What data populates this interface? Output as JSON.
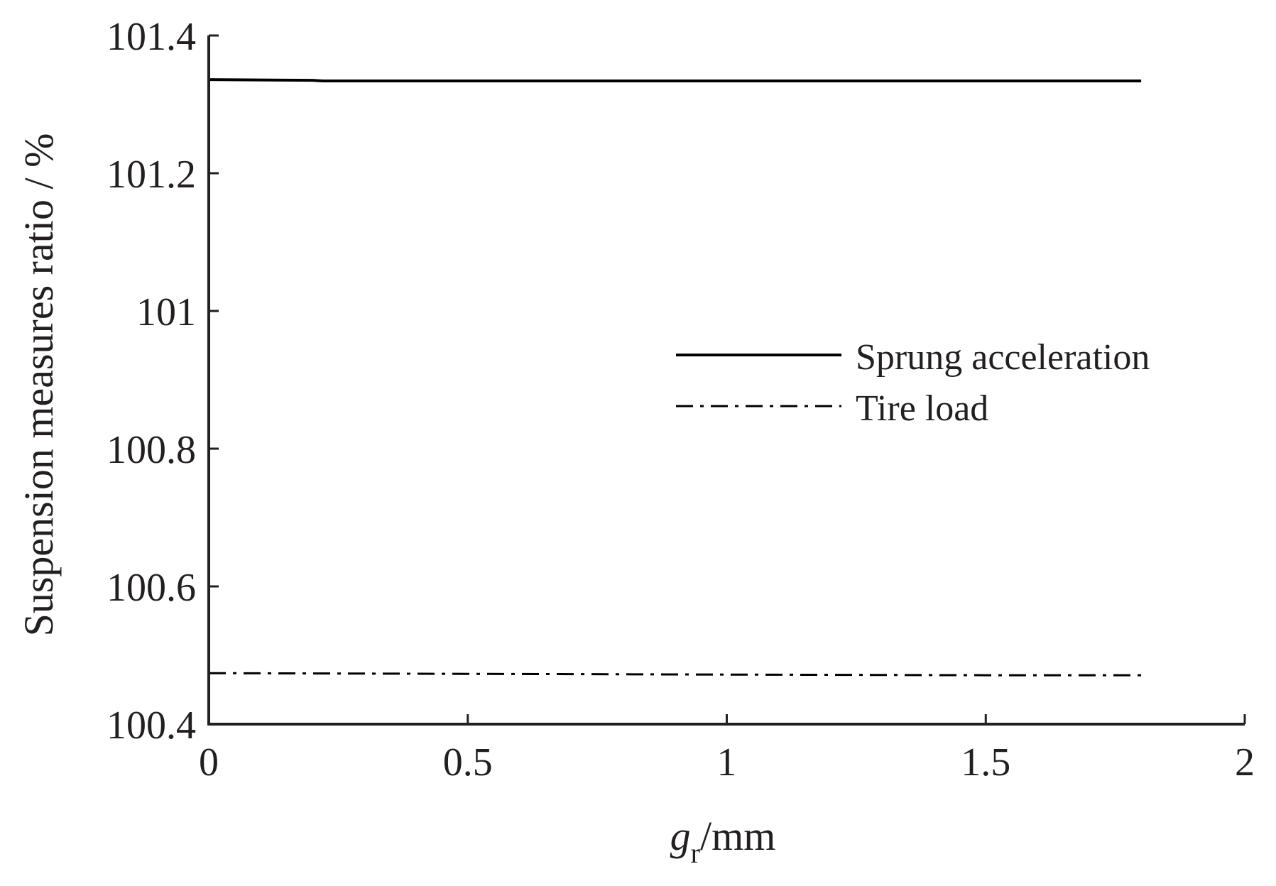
{
  "chart_data": {
    "type": "line",
    "title": "",
    "xlabel": {
      "symbol": "g",
      "subscript": "r",
      "unit": "/mm"
    },
    "ylabel": "Suspension measures ratio / %",
    "xlim": [
      0,
      2
    ],
    "ylim": [
      100.4,
      101.4
    ],
    "xticks": [
      0,
      0.5,
      1,
      1.5,
      2
    ],
    "xtick_labels": [
      "0",
      "0.5",
      "1",
      "1.5",
      "2"
    ],
    "yticks": [
      100.4,
      100.6,
      100.8,
      101,
      101.2,
      101.4
    ],
    "ytick_labels": [
      "100.4",
      "100.6",
      "100.8",
      "101",
      "101.2",
      "101.4"
    ],
    "grid": false,
    "legend_position": "center-right",
    "series": [
      {
        "name": "Sprung acceleration",
        "style": "solid",
        "color": "#000000",
        "x": [
          0,
          0.2,
          0.22,
          0.5,
          1.0,
          1.5,
          1.8
        ],
        "y": [
          101.336,
          101.335,
          101.334,
          101.334,
          101.334,
          101.334,
          101.334
        ]
      },
      {
        "name": "Tire load",
        "style": "dash-dot",
        "color": "#000000",
        "x": [
          0,
          0.5,
          1.0,
          1.5,
          1.8
        ],
        "y": [
          100.474,
          100.473,
          100.472,
          100.471,
          100.471
        ]
      }
    ]
  }
}
